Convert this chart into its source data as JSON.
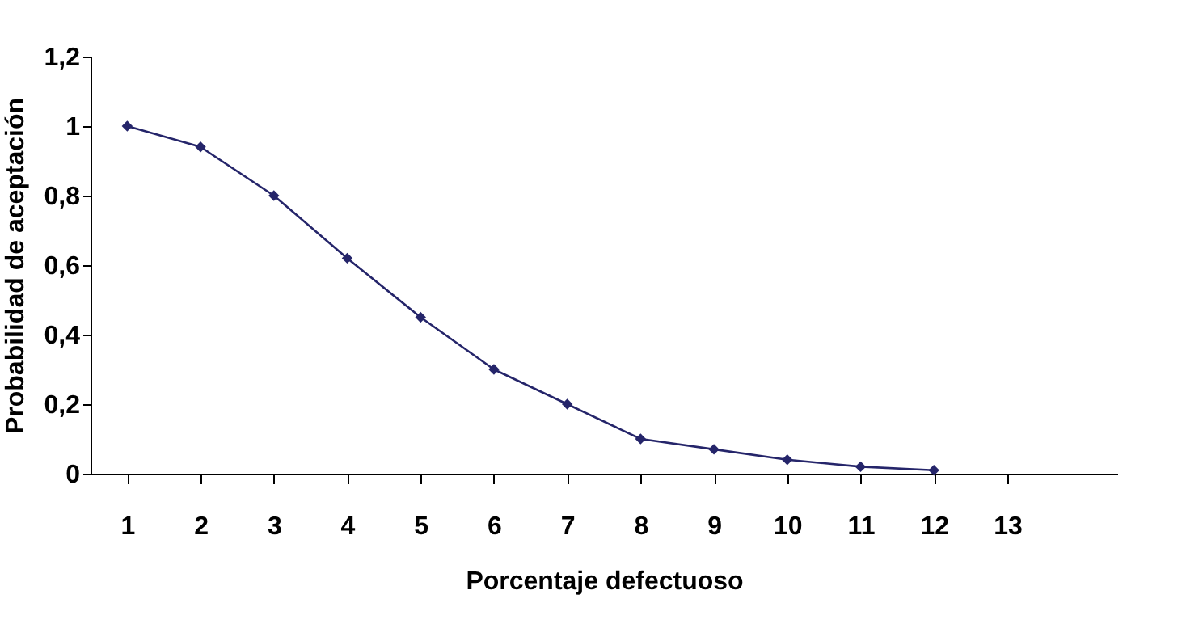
{
  "chart_data": {
    "type": "line",
    "xlabel": "Porcentaje defectuoso",
    "ylabel": "Probabilidad de aceptación",
    "x": [
      1,
      2,
      3,
      4,
      5,
      6,
      7,
      8,
      9,
      10,
      11,
      12
    ],
    "series": [
      {
        "color": "#25256a",
        "values": [
          1,
          0.94,
          0.8,
          0.62,
          0.45,
          0.3,
          0.2,
          0.1,
          0.07,
          0.04,
          0.02,
          0.01
        ]
      }
    ],
    "xlim": [
      0.5,
      14.5
    ],
    "xticks": [
      1,
      2,
      3,
      4,
      5,
      6,
      7,
      8,
      9,
      10,
      11,
      12,
      13
    ],
    "ylim": [
      0,
      1.2
    ],
    "yticks": [
      0,
      {
        "value": 0.2,
        "label": "0,2"
      },
      {
        "value": 0.4,
        "label": "0,4"
      },
      {
        "value": 0.6,
        "label": "0,6"
      },
      {
        "value": 0.8,
        "label": "0,8"
      },
      1,
      {
        "value": 1.2,
        "label": "1,2"
      }
    ],
    "grid": false,
    "marker": "diamond",
    "line_style": "solid"
  }
}
